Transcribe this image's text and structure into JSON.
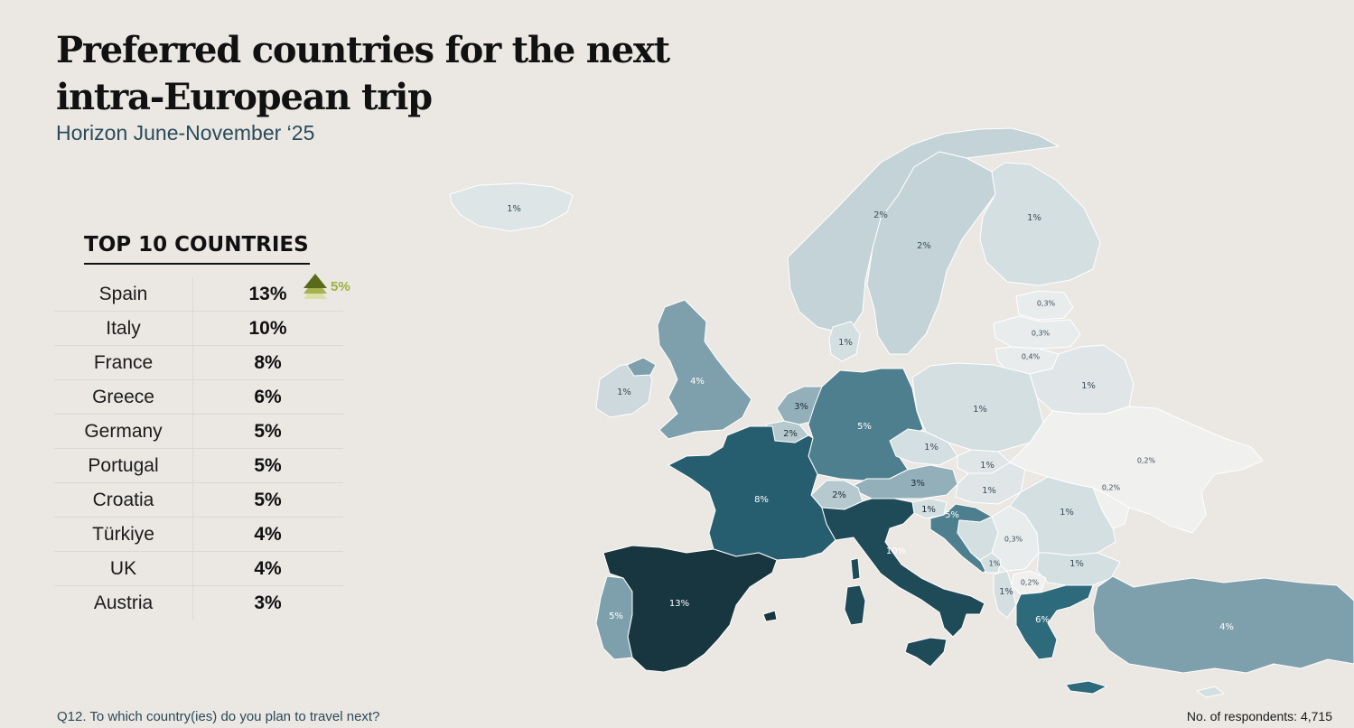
{
  "title_line1": "Preferred countries for the next",
  "title_line2": "intra-European trip",
  "subtitle": "Horizon June-November ‘25",
  "top10": {
    "heading": "TOP 10 COUNTRIES",
    "rows": [
      {
        "country": "Spain",
        "value": "13%"
      },
      {
        "country": "Italy",
        "value": "10%"
      },
      {
        "country": "France",
        "value": "8%"
      },
      {
        "country": "Greece",
        "value": "6%"
      },
      {
        "country": "Germany",
        "value": "5%"
      },
      {
        "country": "Portugal",
        "value": "5%"
      },
      {
        "country": "Croatia",
        "value": "5%"
      },
      {
        "country": "Türkiye",
        "value": "4%"
      },
      {
        "country": "UK",
        "value": "4%"
      },
      {
        "country": "Austria",
        "value": "3%"
      }
    ],
    "trend": {
      "country": "Spain",
      "label": "5%",
      "direction": "up",
      "color": "#6b7a1f"
    }
  },
  "map_labels": [
    {
      "key": "iceland",
      "text": "1%"
    },
    {
      "key": "norway",
      "text": "2%"
    },
    {
      "key": "sweden",
      "text": "2%"
    },
    {
      "key": "finland",
      "text": "1%"
    },
    {
      "key": "estonia",
      "text": "0,3%"
    },
    {
      "key": "latvia",
      "text": "0,3%"
    },
    {
      "key": "lithuania",
      "text": "0,4%"
    },
    {
      "key": "denmark",
      "text": "1%"
    },
    {
      "key": "ireland",
      "text": "1%"
    },
    {
      "key": "uk",
      "text": "4%"
    },
    {
      "key": "netherlands_belgium",
      "text": "3%"
    },
    {
      "key": "luxembourg",
      "text": "2%"
    },
    {
      "key": "germany",
      "text": "5%"
    },
    {
      "key": "poland",
      "text": "1%"
    },
    {
      "key": "belarus",
      "text": "1%"
    },
    {
      "key": "czechia",
      "text": "1%"
    },
    {
      "key": "slovakia",
      "text": "1%"
    },
    {
      "key": "austria",
      "text": "3%"
    },
    {
      "key": "hungary",
      "text": "1%"
    },
    {
      "key": "switzerland",
      "text": "2%"
    },
    {
      "key": "slovenia",
      "text": "1%"
    },
    {
      "key": "croatia",
      "text": "5%"
    },
    {
      "key": "ukraine",
      "text": "0,2%"
    },
    {
      "key": "moldova",
      "text": "0,2%"
    },
    {
      "key": "romania",
      "text": "1%"
    },
    {
      "key": "serbia",
      "text": "0,3%"
    },
    {
      "key": "bulgaria",
      "text": "1%"
    },
    {
      "key": "montenegro",
      "text": "1%"
    },
    {
      "key": "macedonia",
      "text": "0,2%"
    },
    {
      "key": "albania",
      "text": "1%"
    },
    {
      "key": "france",
      "text": "8%"
    },
    {
      "key": "italy",
      "text": "10%"
    },
    {
      "key": "spain",
      "text": "13%"
    },
    {
      "key": "portugal",
      "text": "5%"
    },
    {
      "key": "greece",
      "text": "6%"
    },
    {
      "key": "turkiye",
      "text": "4%"
    }
  ],
  "colors": {
    "c13": "#183640",
    "c10": "#1f4a58",
    "c8": "#275e6f",
    "c6": "#2d6a7c",
    "c5": "#4e7f8f",
    "c4": "#7ea0ac",
    "c3": "#93b0ba",
    "c2": "#b6c9cf",
    "c1": "#d4dfe2",
    "c0": "#f0f0ef",
    "background": "#ebe8e3"
  },
  "footer": {
    "question": "Q12. To which country(ies) do you plan to travel next?",
    "respondents": "No. of respondents: 4,715"
  }
}
